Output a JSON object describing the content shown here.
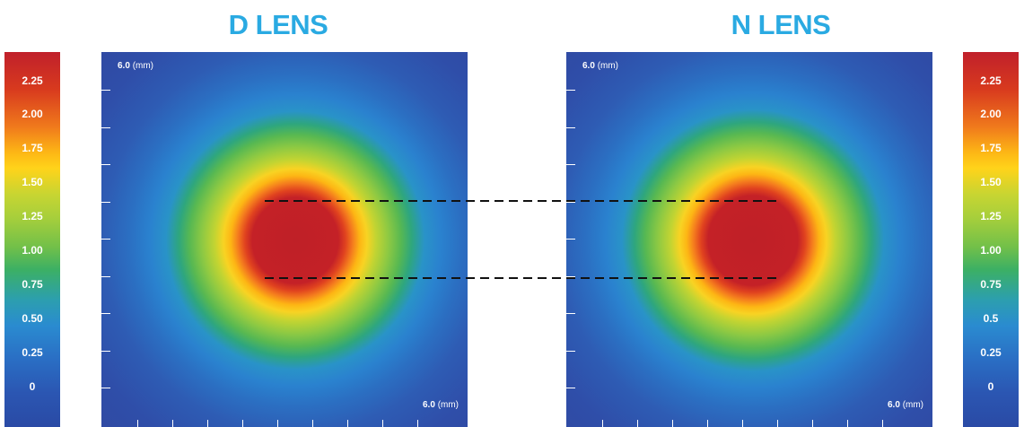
{
  "titles": {
    "left": "D LENS",
    "right": "N LENS"
  },
  "colors": {
    "title": "#2AAAE2",
    "dash": "#111111"
  },
  "scales": {
    "left": [
      "2.25",
      "2.00",
      "1.75",
      "1.50",
      "1.25",
      "1.00",
      "0.75",
      "0.50",
      "0.25",
      "0"
    ],
    "right": [
      "2.25",
      "2.00",
      "1.75",
      "1.50",
      "1.25",
      "1.00",
      "0.75",
      "0.5",
      "0.25",
      "0"
    ]
  },
  "chart_data": [
    {
      "type": "heatmap",
      "title": "D LENS",
      "y_axis_label": "6.0 (mm)",
      "x_axis_label": "6.0 (mm)",
      "colorbar_ticks": [
        2.25,
        2.0,
        1.75,
        1.5,
        1.25,
        1.0,
        0.75,
        0.5,
        0.25,
        0
      ],
      "grid": false
    },
    {
      "type": "heatmap",
      "title": "N LENS",
      "y_axis_label": "6.0 (mm)",
      "x_axis_label": "6.0 (mm)",
      "colorbar_ticks": [
        2.25,
        2.0,
        1.75,
        1.5,
        1.25,
        1.0,
        0.75,
        0.5,
        0.25,
        0
      ],
      "grid": false
    }
  ],
  "axis": {
    "value": "6.0",
    "unit": "(mm)"
  }
}
